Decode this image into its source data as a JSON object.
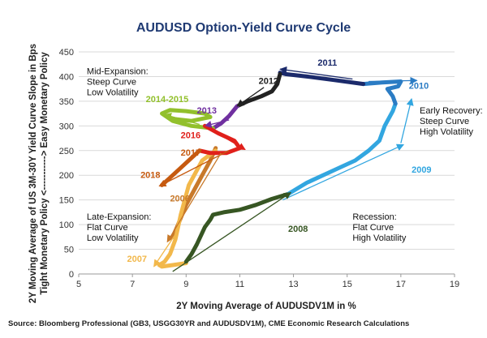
{
  "chart_data": {
    "type": "line",
    "title": "AUDUSD Option-Yield Curve Cycle",
    "xlabel": "2Y Moving Average of AUDUSDV1M in %",
    "ylabel_line1": "2Y Moving Average of US 3M-30Y Yield Curve Slope in Bps",
    "ylabel_line2": "Tight Monetary Policy <-----------> Easy Monetary Policy",
    "source": "Source: Bloomberg Professional (GB3, USGG30YR and AUDUSDV1M), CME Economic Research Calculations",
    "xlim": [
      5,
      19
    ],
    "ylim": [
      0,
      450
    ],
    "x_ticks": [
      5,
      7,
      9,
      11,
      13,
      15,
      17,
      19
    ],
    "y_ticks": [
      0,
      50,
      100,
      150,
      200,
      250,
      300,
      350,
      400,
      450
    ],
    "grid": "horizontal",
    "series": [
      {
        "name": "2006",
        "color": "#c8792a",
        "x": [
          8.5,
          8.7,
          9.0,
          9.3,
          9.6,
          9.9,
          10.1
        ],
        "y": [
          75,
          100,
          140,
          170,
          200,
          230,
          255
        ]
      },
      {
        "name": "2007",
        "color": "#f2b84b",
        "x": [
          10.1,
          9.6,
          9.1,
          8.8,
          8.6,
          8.4,
          8.2,
          8.0,
          8.1,
          8.5,
          9.0
        ],
        "y": [
          250,
          230,
          180,
          120,
          70,
          40,
          25,
          18,
          15,
          18,
          22
        ]
      },
      {
        "name": "2008",
        "color": "#375623",
        "x": [
          9.0,
          9.2,
          9.4,
          9.7,
          9.9,
          10.0,
          10.4,
          11.0,
          11.6,
          12.2,
          12.8
        ],
        "y": [
          25,
          40,
          60,
          95,
          110,
          120,
          125,
          130,
          140,
          152,
          162
        ]
      },
      {
        "name": "2009",
        "color": "#32a6e0",
        "x": [
          12.8,
          13.5,
          14.5,
          15.3,
          15.8,
          16.2,
          16.4,
          16.7,
          16.8
        ],
        "y": [
          162,
          185,
          210,
          230,
          250,
          270,
          300,
          330,
          345
        ]
      },
      {
        "name": "2010",
        "color": "#2b7cc4",
        "x": [
          16.8,
          16.7,
          16.5,
          16.9,
          17.0,
          16.3,
          15.6
        ],
        "y": [
          345,
          360,
          375,
          380,
          390,
          388,
          385
        ]
      },
      {
        "name": "2011",
        "color": "#1b2a6b",
        "x": [
          15.6,
          14.5,
          13.5,
          12.7,
          12.5
        ],
        "y": [
          385,
          393,
          400,
          405,
          408
        ]
      },
      {
        "name": "2012",
        "color": "#222222",
        "x": [
          12.5,
          12.4,
          12.2,
          11.8,
          11.3,
          10.9
        ],
        "y": [
          405,
          385,
          370,
          360,
          350,
          340
        ]
      },
      {
        "name": "2013",
        "color": "#7030a0",
        "x": [
          10.9,
          10.6,
          10.3,
          10.0
        ],
        "y": [
          340,
          320,
          305,
          295
        ]
      },
      {
        "name": "2014-2015",
        "color": "#92c02c",
        "x": [
          10.0,
          9.2,
          8.5,
          8.1,
          8.4,
          9.0,
          9.7,
          9.9,
          9.2,
          8.4
        ],
        "y": [
          295,
          300,
          310,
          325,
          332,
          330,
          325,
          318,
          310,
          315
        ]
      },
      {
        "name": "2016",
        "color": "#e0201b",
        "x": [
          9.7,
          10.2,
          10.8,
          11.0,
          10.5,
          9.9,
          9.5
        ],
        "y": [
          300,
          285,
          270,
          255,
          245,
          245,
          250
        ]
      },
      {
        "name": "2017",
        "color": "#c65a10",
        "x": [
          9.5,
          9.2,
          8.8,
          8.4,
          8.1
        ],
        "y": [
          250,
          235,
          215,
          195,
          180
        ]
      }
    ],
    "annotations": [
      {
        "text_lines": [
          "Mid-Expansion:",
          "Steep Curve",
          "Low Volatility"
        ],
        "x": 5.3,
        "y": 405
      },
      {
        "text_lines": [
          "Early Recovery:",
          "Steep Curve",
          "High Volatility"
        ],
        "x": 17.7,
        "y": 325
      },
      {
        "text_lines": [
          "Late-Expansion:",
          "Flat Curve",
          "Low Volatility"
        ],
        "x": 5.3,
        "y": 110
      },
      {
        "text_lines": [
          "Recession:",
          "Flat Curve",
          "High Volatility"
        ],
        "x": 15.2,
        "y": 110
      }
    ],
    "year_labels": [
      {
        "text": "2011",
        "x": 13.9,
        "y": 422,
        "color": "#1b2a6b"
      },
      {
        "text": "2010",
        "x": 17.3,
        "y": 375,
        "color": "#2b7cc4"
      },
      {
        "text": "2012",
        "x": 11.7,
        "y": 385,
        "color": "#222222"
      },
      {
        "text": "2014-2015",
        "x": 7.5,
        "y": 348,
        "color": "#92c02c"
      },
      {
        "text": "2013",
        "x": 9.4,
        "y": 325,
        "color": "#7030a0"
      },
      {
        "text": "2016",
        "x": 8.8,
        "y": 275,
        "color": "#e0201b"
      },
      {
        "text": "2017",
        "x": 8.8,
        "y": 240,
        "color": "#c65a10"
      },
      {
        "text": "2018",
        "x": 7.3,
        "y": 195,
        "color": "#c65a10"
      },
      {
        "text": "2009",
        "x": 17.4,
        "y": 205,
        "color": "#32a6e0"
      },
      {
        "text": "2006",
        "x": 8.4,
        "y": 147,
        "color": "#c8792a"
      },
      {
        "text": "2008",
        "x": 12.8,
        "y": 85,
        "color": "#375623"
      },
      {
        "text": "2007",
        "x": 6.8,
        "y": 25,
        "color": "#f2b84b"
      }
    ],
    "arrows": [
      {
        "color": "#1b2a6b",
        "x1": 15.2,
        "y1": 395,
        "x2": 12.5,
        "y2": 415
      },
      {
        "color": "#2b7cc4",
        "x1": 15.8,
        "y1": 390,
        "x2": 17.6,
        "y2": 392
      },
      {
        "color": "#32a6e0",
        "x1": 17.0,
        "y1": 265,
        "x2": 17.4,
        "y2": 355
      },
      {
        "color": "#32a6e0",
        "x1": 12.6,
        "y1": 150,
        "x2": 17.1,
        "y2": 262
      },
      {
        "color": "#222222",
        "x1": 11.9,
        "y1": 378,
        "x2": 10.9,
        "y2": 340
      },
      {
        "color": "#7030a0",
        "x1": 10.6,
        "y1": 312,
        "x2": 9.7,
        "y2": 300
      },
      {
        "color": "#92c02c",
        "x1": 9.5,
        "y1": 303,
        "x2": 8.2,
        "y2": 323
      },
      {
        "color": "#e0201b",
        "x1": 9.7,
        "y1": 300,
        "x2": 11.2,
        "y2": 252
      },
      {
        "color": "#c65a10",
        "x1": 10.6,
        "y1": 250,
        "x2": 8.0,
        "y2": 178
      },
      {
        "color": "#c8792a",
        "x1": 10.3,
        "y1": 245,
        "x2": 8.3,
        "y2": 65
      },
      {
        "color": "#f2b84b",
        "x1": 8.6,
        "y1": 80,
        "x2": 7.8,
        "y2": 15
      },
      {
        "color": "#375623",
        "x1": 8.5,
        "y1": 5,
        "x2": 12.9,
        "y2": 165
      }
    ]
  }
}
